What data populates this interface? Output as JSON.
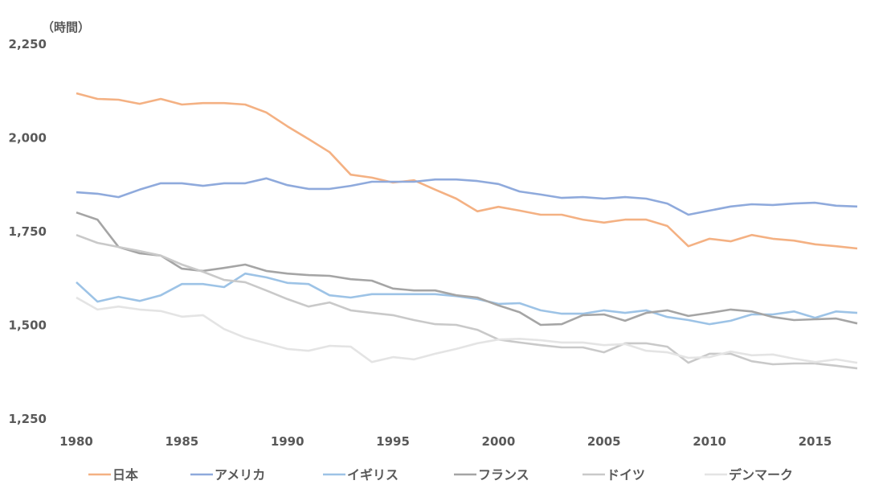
{
  "chart_data": {
    "type": "line",
    "title": "",
    "xlabel": "",
    "ylabel": "（時間）",
    "ylim": [
      1250,
      2250
    ],
    "yticks": [
      1250,
      1500,
      1750,
      2000,
      2250
    ],
    "ytick_labels": [
      "1,250",
      "1,500",
      "1,750",
      "2,000",
      "2,250"
    ],
    "xlim": [
      1980,
      2017
    ],
    "xticks": [
      1980,
      1985,
      1990,
      1995,
      2000,
      2005,
      2010,
      2015
    ],
    "xtick_labels": [
      "1980",
      "1985",
      "1990",
      "1995",
      "2000",
      "2005",
      "2010",
      "2015"
    ],
    "grid": false,
    "legend_position": "bottom",
    "x": [
      1980,
      1981,
      1982,
      1983,
      1984,
      1985,
      1986,
      1987,
      1988,
      1989,
      1990,
      1991,
      1992,
      1993,
      1994,
      1995,
      1996,
      1997,
      1998,
      1999,
      2000,
      2001,
      2002,
      2003,
      2004,
      2005,
      2006,
      2007,
      2008,
      2009,
      2010,
      2011,
      2012,
      2013,
      2014,
      2015,
      2016,
      2017
    ],
    "series": [
      {
        "name": "日本",
        "color": "#F4B183",
        "values": [
          2119,
          2104,
          2102,
          2091,
          2104,
          2089,
          2093,
          2093,
          2089,
          2068,
          2031,
          1997,
          1962,
          1902,
          1894,
          1881,
          1887,
          1862,
          1838,
          1804,
          1816,
          1806,
          1795,
          1795,
          1782,
          1774,
          1782,
          1782,
          1765,
          1711,
          1731,
          1724,
          1741,
          1731,
          1726,
          1716,
          1711,
          1705
        ]
      },
      {
        "name": "アメリカ",
        "color": "#8FAADC",
        "values": [
          1855,
          1851,
          1842,
          1862,
          1879,
          1879,
          1872,
          1879,
          1879,
          1892,
          1874,
          1864,
          1864,
          1872,
          1883,
          1883,
          1883,
          1889,
          1889,
          1885,
          1877,
          1857,
          1849,
          1840,
          1842,
          1838,
          1842,
          1838,
          1825,
          1795,
          1806,
          1817,
          1823,
          1821,
          1825,
          1827,
          1819,
          1817
        ]
      },
      {
        "name": "イギリス",
        "color": "#9DC3E6",
        "values": [
          1615,
          1563,
          1576,
          1565,
          1580,
          1610,
          1610,
          1602,
          1638,
          1628,
          1613,
          1610,
          1580,
          1574,
          1583,
          1583,
          1583,
          1583,
          1578,
          1570,
          1557,
          1559,
          1540,
          1531,
          1531,
          1540,
          1533,
          1540,
          1522,
          1514,
          1503,
          1512,
          1529,
          1529,
          1537,
          1520,
          1537,
          1533
        ]
      },
      {
        "name": "フランス",
        "color": "#A5A5A5",
        "values": [
          1801,
          1782,
          1709,
          1692,
          1686,
          1651,
          1645,
          1653,
          1662,
          1645,
          1638,
          1634,
          1632,
          1623,
          1619,
          1598,
          1593,
          1593,
          1580,
          1574,
          1553,
          1535,
          1501,
          1503,
          1527,
          1529,
          1512,
          1533,
          1540,
          1525,
          1533,
          1542,
          1537,
          1522,
          1514,
          1516,
          1518,
          1505
        ]
      },
      {
        "name": "ドイツ",
        "color": "#C9C9C9",
        "values": [
          1741,
          1720,
          1709,
          1698,
          1686,
          1662,
          1643,
          1621,
          1615,
          1593,
          1570,
          1550,
          1561,
          1540,
          1533,
          1527,
          1514,
          1503,
          1501,
          1488,
          1462,
          1454,
          1447,
          1441,
          1441,
          1428,
          1452,
          1452,
          1443,
          1400,
          1424,
          1424,
          1404,
          1396,
          1398,
          1398,
          1392,
          1385
        ]
      },
      {
        "name": "デンマーク",
        "color": "#E4E4E4",
        "values": [
          1574,
          1542,
          1550,
          1542,
          1538,
          1523,
          1527,
          1490,
          1467,
          1452,
          1437,
          1432,
          1445,
          1443,
          1402,
          1415,
          1409,
          1424,
          1437,
          1452,
          1462,
          1464,
          1460,
          1454,
          1454,
          1447,
          1450,
          1432,
          1428,
          1413,
          1415,
          1430,
          1420,
          1422,
          1411,
          1402,
          1409,
          1400
        ]
      }
    ]
  }
}
